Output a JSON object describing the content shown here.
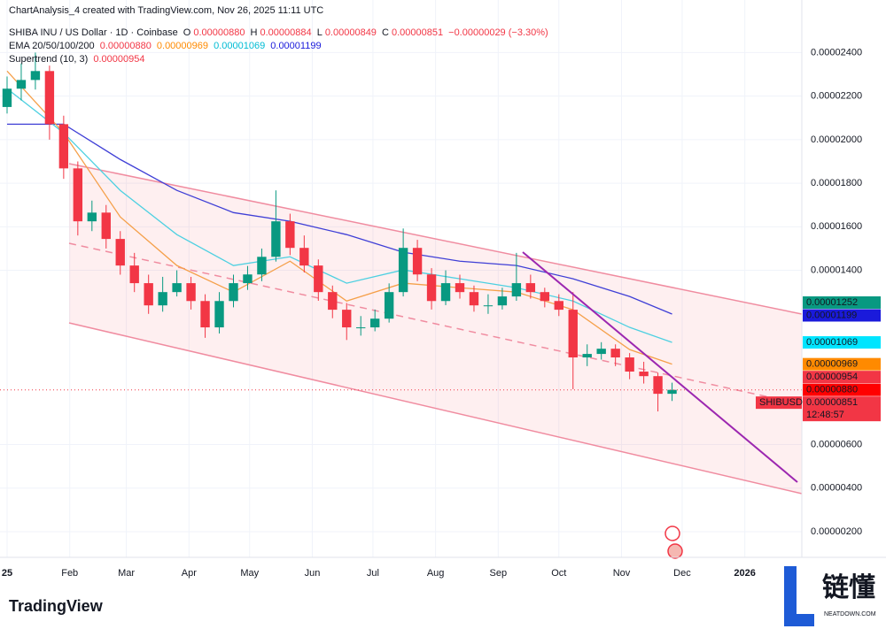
{
  "header": {
    "credit": "ChartAnalysis_4 created with TradingView.com, Nov 26, 2025 11:11 UTC",
    "symbol": "SHIBA INU / US Dollar · 1D · Coinbase",
    "ohlc": [
      {
        "key": "O",
        "value": "0.00000880"
      },
      {
        "key": "H",
        "value": "0.00000884"
      },
      {
        "key": "L",
        "value": "0.00000849"
      },
      {
        "key": "C",
        "value": "0.00000851"
      }
    ],
    "change": "−0.00000029 (−3.30%)",
    "ema_label": "EMA 20/50/100/200",
    "ema_values": [
      "0.00000880",
      "0.00000969",
      "0.00001069",
      "0.00001199"
    ],
    "supertrend_label": "Supertrend (10, 3)",
    "supertrend_value": "0.00000954"
  },
  "chart_data": {
    "type": "candlestick",
    "symbol_tag": "SHIBUSD",
    "countdown": "12:48:57",
    "up_color": "#089981",
    "down_color": "#f23645",
    "x": [
      0,
      7,
      14,
      21,
      28,
      35,
      42,
      49,
      56,
      63,
      70,
      77,
      84,
      91,
      98,
      105,
      112,
      119,
      126,
      133,
      140,
      147,
      154,
      161,
      168,
      175,
      182,
      189,
      196,
      203,
      210,
      217,
      224,
      231,
      238,
      245,
      252,
      259,
      266,
      273,
      280,
      287,
      294,
      301,
      308,
      315,
      322,
      329
    ],
    "open": [
      2.15e-05,
      2.234e-05,
      2.274e-05,
      2.315e-05,
      2.071e-05,
      1.868e-05,
      1.625e-05,
      1.665e-05,
      1.544e-05,
      1.422e-05,
      1.341e-05,
      1.239e-05,
      1.3e-05,
      1.341e-05,
      1.259e-05,
      1.138e-05,
      1.259e-05,
      1.341e-05,
      1.381e-05,
      1.462e-05,
      1.625e-05,
      1.503e-05,
      1.422e-05,
      1.3e-05,
      1.219e-05,
      1.138e-05,
      1.138e-05,
      1.178e-05,
      1.3e-05,
      1.503e-05,
      1.381e-05,
      1.259e-05,
      1.341e-05,
      1.3e-05,
      1.239e-05,
      1.239e-05,
      1.28e-05,
      1.341e-05,
      1.3e-05,
      1.259e-05,
      1.219e-05,
      1e-05,
      1.016e-05,
      1.04e-05,
      1e-05,
      9.35e-06,
      9.14e-06,
      8.33e-06
    ],
    "high": [
      2.29e-05,
      2.35e-05,
      2.4e-05,
      2.34e-05,
      2.11e-05,
      1.9e-05,
      1.72e-05,
      1.7e-05,
      1.58e-05,
      1.48e-05,
      1.38e-05,
      1.37e-05,
      1.4e-05,
      1.37e-05,
      1.29e-05,
      1.3e-05,
      1.38e-05,
      1.42e-05,
      1.5e-05,
      1.767e-05,
      1.66e-05,
      1.56e-05,
      1.45e-05,
      1.33e-05,
      1.25e-05,
      1.19e-05,
      1.22e-05,
      1.34e-05,
      1.592e-05,
      1.54e-05,
      1.41e-05,
      1.4e-05,
      1.38e-05,
      1.33e-05,
      1.29e-05,
      1.32e-05,
      1.48e-05,
      1.38e-05,
      1.32e-05,
      1.29e-05,
      1.3e-05,
      1.06e-05,
      1.07e-05,
      1.06e-05,
      1.02e-05,
      9.8e-06,
      9.3e-06,
      8.84e-06
    ],
    "low": [
      2.12e-05,
      2.18e-05,
      2.23e-05,
      2e-05,
      1.82e-05,
      1.56e-05,
      1.58e-05,
      1.5e-05,
      1.38e-05,
      1.3e-05,
      1.2e-05,
      1.21e-05,
      1.28e-05,
      1.22e-05,
      1.09e-05,
      1.11e-05,
      1.23e-05,
      1.31e-05,
      1.35e-05,
      1.44e-05,
      1.47e-05,
      1.39e-05,
      1.26e-05,
      1.18e-05,
      1.08e-05,
      1.1e-05,
      1.12e-05,
      1.16e-05,
      1.28e-05,
      1.35e-05,
      1.22e-05,
      1.24e-05,
      1.27e-05,
      1.21e-05,
      1.2e-05,
      1.22e-05,
      1.26e-05,
      1.27e-05,
      1.23e-05,
      1.19e-05,
      8.54e-06,
      9.6e-06,
      9.9e-06,
      9.6e-06,
      9e-06,
      8.8e-06,
      7.52e-06,
      8e-06
    ],
    "close": [
      2.234e-05,
      2.274e-05,
      2.315e-05,
      2.071e-05,
      1.868e-05,
      1.625e-05,
      1.665e-05,
      1.544e-05,
      1.422e-05,
      1.341e-05,
      1.239e-05,
      1.3e-05,
      1.341e-05,
      1.259e-05,
      1.138e-05,
      1.259e-05,
      1.341e-05,
      1.381e-05,
      1.462e-05,
      1.625e-05,
      1.503e-05,
      1.422e-05,
      1.3e-05,
      1.219e-05,
      1.138e-05,
      1.138e-05,
      1.178e-05,
      1.3e-05,
      1.503e-05,
      1.381e-05,
      1.259e-05,
      1.341e-05,
      1.3e-05,
      1.239e-05,
      1.239e-05,
      1.28e-05,
      1.341e-05,
      1.3e-05,
      1.259e-05,
      1.219e-05,
      1e-05,
      1.016e-05,
      1.04e-05,
      1e-05,
      9.35e-06,
      9.14e-06,
      8.33e-06,
      8.51e-06
    ],
    "overlays": [
      {
        "color": "#3f3fd6",
        "x": [
          0,
          28,
          56,
          84,
          112,
          140,
          168,
          196,
          224,
          252,
          280,
          308,
          329
        ],
        "values": [
          2.071e-05,
          2.071e-05,
          1.909e-05,
          1.767e-05,
          1.665e-05,
          1.625e-05,
          1.564e-05,
          1.483e-05,
          1.442e-05,
          1.422e-05,
          1.361e-05,
          1.28e-05,
          1.199e-05
        ]
      },
      {
        "color": "#4dd0e1",
        "x": [
          0,
          28,
          56,
          84,
          112,
          140,
          168,
          196,
          224,
          252,
          280,
          308,
          329
        ],
        "values": [
          2.234e-05,
          2.031e-05,
          1.767e-05,
          1.564e-05,
          1.422e-05,
          1.462e-05,
          1.341e-05,
          1.402e-05,
          1.361e-05,
          1.32e-05,
          1.259e-05,
          1.138e-05,
          1.069e-05
        ]
      },
      {
        "color": "#f5a04a",
        "x": [
          0,
          28,
          56,
          84,
          112,
          140,
          168,
          196,
          224,
          252,
          280,
          308,
          329
        ],
        "values": [
          2.315e-05,
          2.031e-05,
          1.645e-05,
          1.422e-05,
          1.3e-05,
          1.442e-05,
          1.259e-05,
          1.341e-05,
          1.32e-05,
          1.3e-05,
          1.219e-05,
          1.036e-05,
          9.69e-06
        ]
      }
    ],
    "price_labels": [
      {
        "value": 1.252e-05,
        "label": "0.00001252",
        "color": "#089981"
      },
      {
        "value": 1.199e-05,
        "label": "0.00001199",
        "color": "#1a1adb"
      },
      {
        "value": 1.069e-05,
        "label": "0.00001069",
        "color": "#00e5ff"
      },
      {
        "value": 9.69e-06,
        "label": "0.00000969",
        "color": "#ff8a00"
      },
      {
        "value": 9.54e-06,
        "label": "0.00000954",
        "color": "#f23645"
      },
      {
        "value": 8.8e-06,
        "label": "0.00000880",
        "color": "#ff0000"
      },
      {
        "value": 8.51e-06,
        "label": "0.00000851",
        "color": "#f23645"
      }
    ],
    "xlim": [
      -3.5,
      393.2
    ],
    "ylim": [
      8.2e-07,
      2.56e-05
    ],
    "xticks": [
      {
        "value": 0,
        "label": "25"
      },
      {
        "value": 31,
        "label": "Feb"
      },
      {
        "value": 59,
        "label": "Mar"
      },
      {
        "value": 90,
        "label": "Apr"
      },
      {
        "value": 120,
        "label": "May"
      },
      {
        "value": 151,
        "label": "Jun"
      },
      {
        "value": 181,
        "label": "Jul"
      },
      {
        "value": 212,
        "label": "Aug"
      },
      {
        "value": 243,
        "label": "Sep"
      },
      {
        "value": 273,
        "label": "Oct"
      },
      {
        "value": 304,
        "label": "Nov"
      },
      {
        "value": 334,
        "label": "Dec"
      },
      {
        "value": 365,
        "label": "2026"
      }
    ],
    "yticks": [
      {
        "value": 2.4e-05,
        "label": "0.00002400"
      },
      {
        "value": 2.2e-05,
        "label": "0.00002200"
      },
      {
        "value": 2e-05,
        "label": "0.00002000"
      },
      {
        "value": 1.8e-05,
        "label": "0.00001800"
      },
      {
        "value": 1.6e-05,
        "label": "0.00001600"
      },
      {
        "value": 1.4e-05,
        "label": "0.00001400"
      },
      {
        "value": 6e-06,
        "label": "0.00000600"
      },
      {
        "value": 4e-06,
        "label": "0.00000400"
      },
      {
        "value": 2e-06,
        "label": "0.00000200"
      }
    ],
    "grid": true
  },
  "footer": {
    "logo": "TradingView",
    "watermark": "链懂",
    "watermark_sub": "NEATDOWN.COM"
  }
}
